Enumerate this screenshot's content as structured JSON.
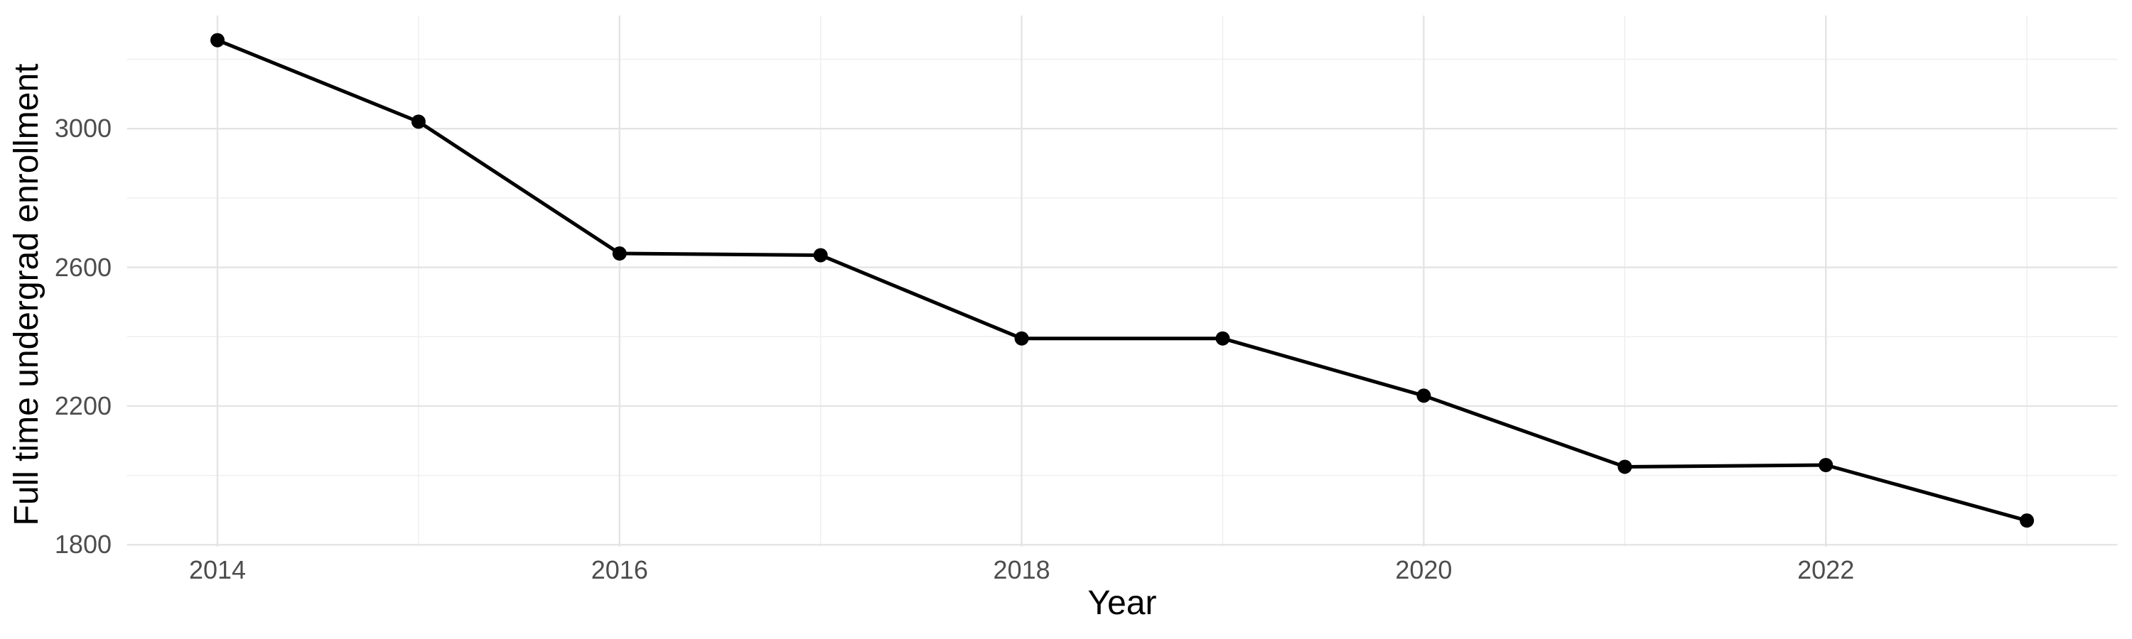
{
  "chart_data": {
    "type": "line",
    "title": "",
    "xlabel": "Year",
    "ylabel": "Full time undergrad enrollment",
    "x": [
      2014,
      2015,
      2016,
      2017,
      2018,
      2019,
      2020,
      2021,
      2022,
      2023
    ],
    "series": [
      {
        "name": "Full time undergrad enrollment",
        "values": [
          3255,
          3020,
          2640,
          2635,
          2395,
          2395,
          2230,
          2025,
          2030,
          1870
        ]
      }
    ],
    "x_ticks": [
      2014,
      2016,
      2018,
      2020,
      2022
    ],
    "y_ticks": [
      1800,
      2200,
      2600,
      3000
    ],
    "x_minor_gridlines": [
      2015,
      2017,
      2019,
      2021,
      2023
    ],
    "y_minor_gridlines": [
      2000,
      2400,
      2800,
      3200
    ],
    "xlim": [
      2013.55,
      2023.45
    ],
    "ylim": [
      1795,
      3326
    ],
    "grid": "major+minor",
    "legend": "none",
    "colors": {
      "line": "#000000",
      "point": "#000000",
      "grid_major": "#e4e4e4",
      "grid_minor": "#efefef",
      "tick_label": "#4d4d4d",
      "axis_title": "#000000",
      "background": "#ffffff"
    }
  }
}
